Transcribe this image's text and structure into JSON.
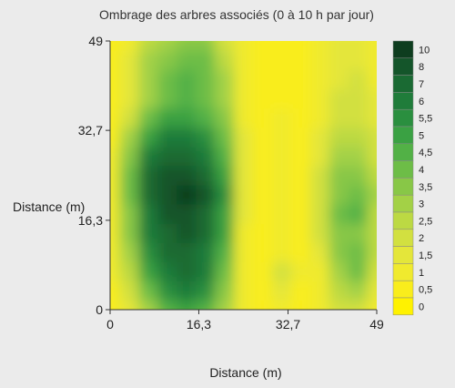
{
  "chart_data": {
    "type": "heatmap",
    "title": "Ombrage des arbres associés (0 à 10 h par jour)",
    "xlabel": "Distance (m)",
    "ylabel": "Distance (m)",
    "xlim": [
      0,
      49
    ],
    "ylim": [
      0,
      49
    ],
    "x_ticks": [
      {
        "value": 0,
        "label": "0"
      },
      {
        "value": 16.3,
        "label": "16,3"
      },
      {
        "value": 32.7,
        "label": "32,7"
      },
      {
        "value": 49,
        "label": "49"
      }
    ],
    "y_ticks": [
      {
        "value": 0,
        "label": "0"
      },
      {
        "value": 16.3,
        "label": "16,3"
      },
      {
        "value": 32.7,
        "label": "32,7"
      },
      {
        "value": 49,
        "label": "49"
      }
    ],
    "legend": {
      "title": "",
      "levels": [
        {
          "label": "10",
          "color": "#0e3d1f"
        },
        {
          "label": "8",
          "color": "#14552a"
        },
        {
          "label": "7",
          "color": "#1a6a33"
        },
        {
          "label": "6",
          "color": "#1f7c3a"
        },
        {
          "label": "5,5",
          "color": "#2a8f3f"
        },
        {
          "label": "5",
          "color": "#3aa143"
        },
        {
          "label": "4,5",
          "color": "#52b146"
        },
        {
          "label": "4",
          "color": "#6dbd47"
        },
        {
          "label": "3,5",
          "color": "#88c747"
        },
        {
          "label": "3",
          "color": "#a3d146"
        },
        {
          "label": "2,5",
          "color": "#bcd943"
        },
        {
          "label": "2",
          "color": "#d2e040"
        },
        {
          "label": "1,5",
          "color": "#e4e63a"
        },
        {
          "label": "1",
          "color": "#f0ea2e"
        },
        {
          "label": "0,5",
          "color": "#f9ed1c"
        },
        {
          "label": "0",
          "color": "#fff200"
        }
      ]
    },
    "grid_x": [
      0,
      3.5,
      7,
      10.5,
      14,
      17.5,
      21,
      24.5,
      28,
      31.5,
      35,
      38.5,
      42,
      45.5,
      49
    ],
    "grid_y": [
      0,
      3.5,
      7,
      10.5,
      14,
      17.5,
      21,
      24.5,
      28,
      31.5,
      35,
      38.5,
      42,
      45.5,
      49
    ],
    "shade_hours": [
      [
        0.5,
        1.5,
        3,
        4.5,
        5,
        4.5,
        3,
        1,
        0.5,
        1,
        0.5,
        1,
        2,
        2,
        1
      ],
      [
        0.5,
        2,
        4,
        5.5,
        6,
        5.5,
        3.5,
        1,
        0.5,
        1.5,
        0.5,
        1,
        2.5,
        3,
        1.5
      ],
      [
        1,
        2.5,
        5,
        6,
        7,
        6,
        4,
        1,
        0.5,
        2,
        1,
        1,
        3,
        4,
        2
      ],
      [
        1,
        3,
        5.5,
        7,
        7,
        6.5,
        4.5,
        1,
        0.5,
        1,
        0.5,
        1.5,
        3.5,
        4,
        2.5
      ],
      [
        1,
        3.5,
        6,
        7,
        8,
        7,
        5,
        1,
        0.5,
        1,
        0.5,
        2,
        3.5,
        3.5,
        2.5
      ],
      [
        1,
        3.5,
        6.5,
        8,
        8,
        7,
        5,
        1.5,
        0.5,
        1,
        0.5,
        2,
        4,
        4.5,
        2.5
      ],
      [
        1,
        4,
        7,
        8,
        10,
        8,
        5.5,
        1.5,
        0.5,
        1,
        0.5,
        2,
        3.5,
        4,
        3
      ],
      [
        1,
        4,
        7,
        8,
        8,
        7,
        5,
        1.5,
        0.5,
        1,
        0.5,
        2,
        3.5,
        3.5,
        2.5
      ],
      [
        1,
        3.5,
        6,
        7,
        7,
        6.5,
        4.5,
        1.5,
        0.5,
        1,
        0.5,
        1.5,
        3,
        3,
        2
      ],
      [
        0.5,
        3,
        5,
        6,
        6,
        5.5,
        4,
        1.5,
        0.5,
        1,
        0.5,
        1.5,
        2.5,
        2.5,
        2
      ],
      [
        0.5,
        2,
        4,
        5,
        5,
        4.5,
        3.5,
        1,
        0.5,
        1,
        0.5,
        1,
        2,
        2,
        1.5
      ],
      [
        0.5,
        1.5,
        3,
        4,
        4.5,
        4,
        3,
        1,
        0.5,
        0.5,
        0.5,
        1,
        2,
        2,
        1.5
      ],
      [
        0.5,
        1.5,
        3,
        4,
        4.5,
        4,
        3,
        1,
        0.5,
        0.5,
        0.5,
        1,
        1.5,
        2,
        1
      ],
      [
        0.5,
        1.5,
        3,
        3.5,
        4,
        4,
        2.5,
        1,
        0.5,
        0.5,
        0.5,
        1,
        1.5,
        1.5,
        1
      ],
      [
        0.5,
        1,
        2.5,
        3,
        3.5,
        3.5,
        2,
        1,
        0.5,
        0.5,
        0.5,
        1,
        1.5,
        1.5,
        1
      ]
    ],
    "grid": false,
    "legend_placement": "right"
  }
}
